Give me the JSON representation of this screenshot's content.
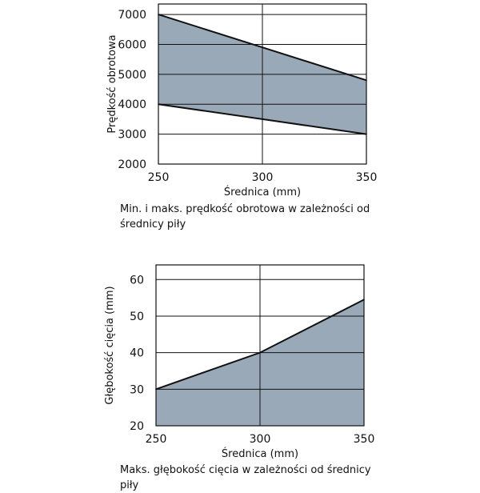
{
  "chart_data": [
    {
      "type": "area",
      "x": [
        250,
        300,
        350
      ],
      "series": [
        {
          "values": [
            7000,
            5900,
            4800
          ]
        },
        {
          "values": [
            4000,
            3500,
            3000
          ]
        }
      ],
      "xticks": [
        250,
        300,
        350
      ],
      "yticks": [
        2000,
        3000,
        4000,
        5000,
        6000,
        7000
      ],
      "xlim": [
        250,
        350
      ],
      "ylim": [
        2000,
        7350
      ],
      "xlabel": "Średnica (mm)",
      "ylabel": "Prędkość obrotowa",
      "caption_lines": [
        "Min. i maks. prędkość obrotowa w zależności od",
        "średnicy piły"
      ],
      "grid": true,
      "fill_color": "#9aa9b8"
    },
    {
      "type": "area",
      "x": [
        250,
        300,
        350
      ],
      "series": [
        {
          "values": [
            30,
            40,
            54.5
          ]
        }
      ],
      "xticks": [
        250,
        300,
        350
      ],
      "yticks": [
        20,
        30,
        40,
        50,
        60
      ],
      "xlim": [
        250,
        350
      ],
      "ylim": [
        20,
        64
      ],
      "xlabel": "Średnica (mm)",
      "ylabel": "Głębokość cięcia (mm)",
      "caption_lines": [
        "Maks. głębokość cięcia w zależności od średnicy piły"
      ],
      "grid": true,
      "fill_color": "#9aa9b8"
    }
  ]
}
